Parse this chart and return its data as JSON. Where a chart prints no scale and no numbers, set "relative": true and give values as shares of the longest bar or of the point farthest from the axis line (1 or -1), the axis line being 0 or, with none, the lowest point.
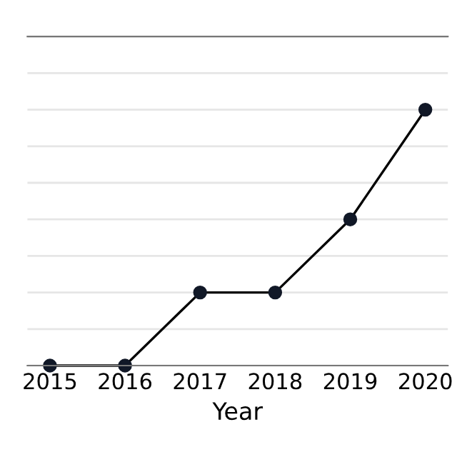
{
  "chart_data": {
    "type": "line",
    "xlabel": "Year",
    "categories": [
      "2015",
      "2016",
      "2017",
      "2018",
      "2019",
      "2020"
    ],
    "series": [
      {
        "color": "#111827",
        "values": [
          0,
          0,
          0.2857,
          0.2857,
          0.5714,
          1
        ]
      }
    ],
    "relative": true,
    "marker": "circle",
    "line_style": "solid",
    "grid": "y",
    "legend": false
  }
}
